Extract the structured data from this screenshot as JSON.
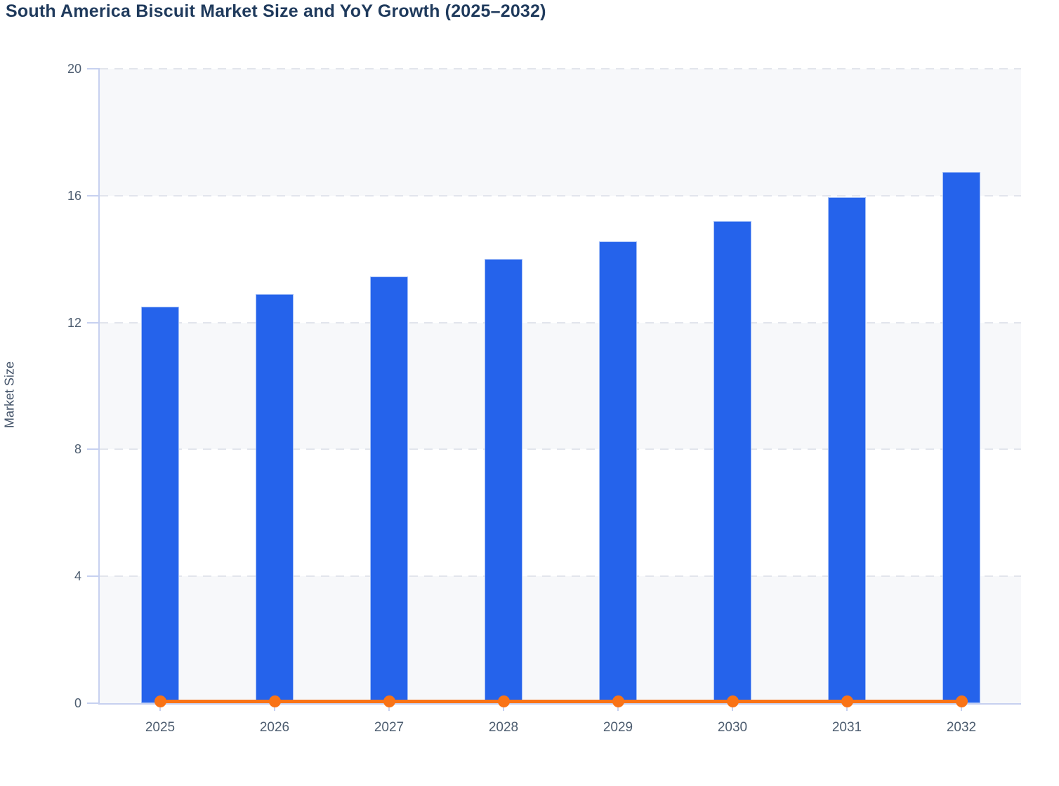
{
  "title": "South America Biscuit Market Size and YoY Growth (2025–2032)",
  "colors": {
    "bar": "#2563eb",
    "bar_border": "#a5c0f7",
    "line": "#f97316",
    "axis": "#c7d1f0",
    "gridline": "#e2e5ec",
    "band": "#f7f8fa",
    "title_text": "#1f3a5c",
    "tick_text": "#4d5d70"
  },
  "chart_data": {
    "type": "bar",
    "title": "South America Biscuit Market Size and YoY Growth (2025–2032)",
    "categories": [
      "2025",
      "2026",
      "2027",
      "2028",
      "2029",
      "2030",
      "2031",
      "2032"
    ],
    "series": [
      {
        "name": "Market Size",
        "type": "bar",
        "values": [
          12.5,
          12.9,
          13.45,
          14.0,
          14.55,
          15.2,
          15.95,
          16.75
        ]
      },
      {
        "name": "YoY Growth",
        "type": "line",
        "values": [
          0.05,
          0.05,
          0.05,
          0.05,
          0.05,
          0.05,
          0.05,
          0.05
        ]
      }
    ],
    "xlabel": "",
    "ylabel": "Market Size",
    "ylim": [
      0,
      20
    ],
    "yticks": [
      0,
      4,
      8,
      12,
      16,
      20
    ],
    "grid": "horizontal-dashed",
    "bands": "alternating horizontal fill from top: gray, white, gray, white, gray",
    "legend": "none"
  }
}
